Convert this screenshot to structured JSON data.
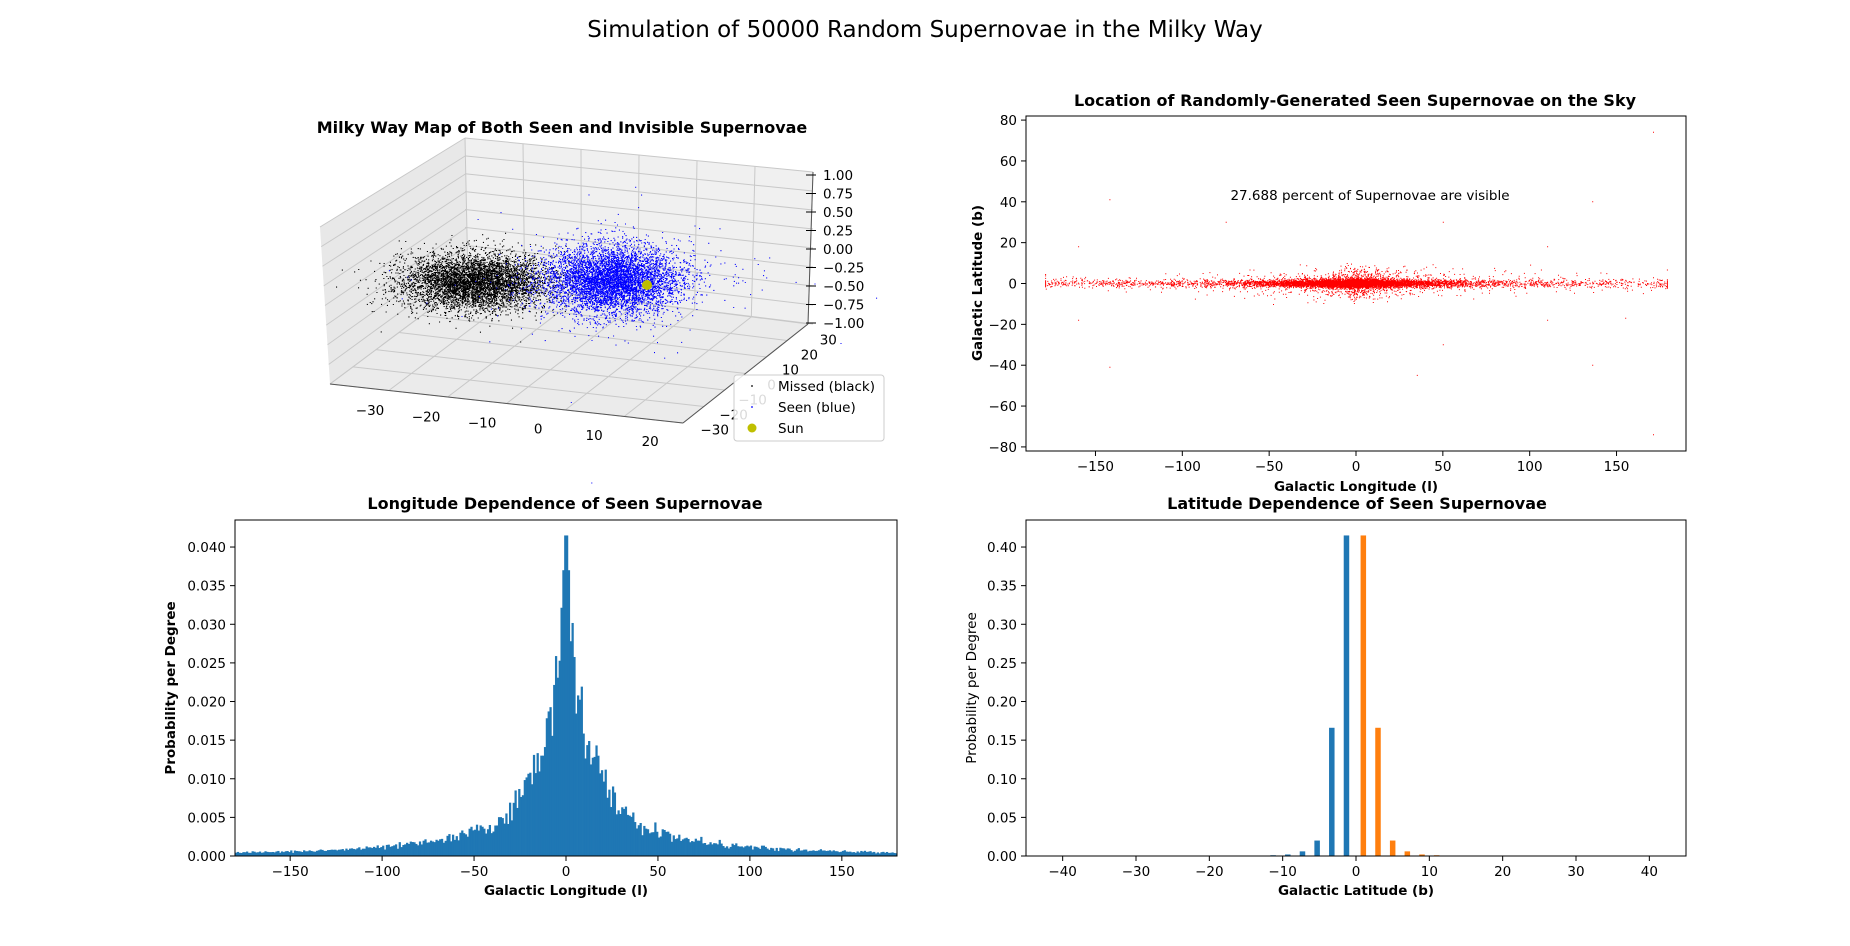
{
  "figure": {
    "suptitle": "Simulation of 50000 Random Supernovae in the Milky Way"
  },
  "chart_data": [
    {
      "type": "scatter3d",
      "title": "Milky Way Map of Both Seen and Invisible Supernovae",
      "x_ticks": [
        -30,
        -20,
        -10,
        0,
        10,
        20
      ],
      "y_ticks": [
        -30,
        -20,
        -10,
        0,
        10,
        20,
        30
      ],
      "z_ticks": [
        "1.00",
        "0.75",
        "0.50",
        "0.25",
        "0.00",
        "−0.25",
        "−0.50",
        "−0.75",
        "−1.00"
      ],
      "legend": [
        {
          "label": "Missed (black)",
          "color": "#000000"
        },
        {
          "label": "Seen (blue)",
          "color": "#0000ff"
        },
        {
          "label": "Sun",
          "color": "#bfbf00"
        }
      ],
      "series": [
        {
          "name": "Missed (black)",
          "color": "#000000"
        },
        {
          "name": "Seen (blue)",
          "color": "#0000ff"
        },
        {
          "name": "Sun",
          "color": "#bfbf00"
        }
      ],
      "sun": {
        "x": 8.5,
        "y": 0,
        "z": 0
      }
    },
    {
      "type": "scatter",
      "title": "Location of Randomly-Generated Seen Supernovae on the Sky",
      "xlabel": "Galactic Longitude (l)",
      "ylabel": "Galactic Latitude (b)",
      "xlim": [
        -190,
        190
      ],
      "ylim": [
        -82,
        82
      ],
      "x_ticks": [
        -150,
        -100,
        -50,
        0,
        50,
        100,
        150
      ],
      "y_ticks": [
        -80,
        -60,
        -40,
        -20,
        0,
        20,
        40,
        60,
        80
      ],
      "annotation": "27.688 percent of Supernovae are visible",
      "color": "#ff0000",
      "outliers": [
        {
          "x": 171,
          "y": 74
        },
        {
          "x": 171,
          "y": -74
        },
        {
          "x": -142,
          "y": 41
        },
        {
          "x": -142,
          "y": -41
        },
        {
          "x": 136,
          "y": 40
        },
        {
          "x": 136,
          "y": -40
        },
        {
          "x": -75,
          "y": 30
        },
        {
          "x": 50,
          "y": 30
        },
        {
          "x": 50,
          "y": -30
        },
        {
          "x": 35,
          "y": -45
        },
        {
          "x": -160,
          "y": -18
        },
        {
          "x": -160,
          "y": 18
        },
        {
          "x": 110,
          "y": 18
        },
        {
          "x": 110,
          "y": -18
        },
        {
          "x": 155,
          "y": -17
        }
      ]
    },
    {
      "type": "bar",
      "title": "Longitude Dependence of Seen Supernovae",
      "xlabel": "Galactic Longitude (l)",
      "ylabel": "Probability per Degree",
      "xlim": [
        -180,
        180
      ],
      "ylim": [
        0,
        0.0435
      ],
      "x_ticks": [
        -150,
        -100,
        -50,
        0,
        50,
        100,
        150
      ],
      "y_ticks": [
        "0.000",
        "0.005",
        "0.010",
        "0.015",
        "0.020",
        "0.025",
        "0.030",
        "0.035",
        "0.040"
      ],
      "color": "#1f77b4",
      "bin_width_deg": 1,
      "peak": {
        "x": 0,
        "y": 0.0415
      },
      "profile": {
        "core_width_deg": 10.8,
        "halo_width_deg": 46,
        "baseline": 0.0003
      }
    },
    {
      "type": "bar",
      "title": "Latitude Dependence of Seen Supernovae",
      "xlabel": "Galactic Latitude (b)",
      "ylabel": "Probability per Degree",
      "xlim": [
        -45,
        45
      ],
      "ylim": [
        0,
        0.435
      ],
      "x_ticks": [
        -40,
        -30,
        -20,
        -10,
        0,
        10,
        20,
        30,
        40
      ],
      "y_ticks": [
        "0.00",
        "0.05",
        "0.10",
        "0.15",
        "0.20",
        "0.25",
        "0.30",
        "0.35",
        "0.40"
      ],
      "series": [
        {
          "color": "#1f77b4",
          "x": [
            -1.3,
            -3.3,
            -5.3,
            -7.3,
            -9.3,
            -11.3
          ],
          "values": [
            0.415,
            0.166,
            0.02,
            0.006,
            0.002,
            0.001
          ]
        },
        {
          "color": "#ff7f0e",
          "x": [
            1.0,
            3.0,
            5.0,
            7.0,
            9.0,
            11.0
          ],
          "values": [
            0.415,
            0.166,
            0.02,
            0.006,
            0.002,
            0.001
          ]
        }
      ]
    }
  ]
}
